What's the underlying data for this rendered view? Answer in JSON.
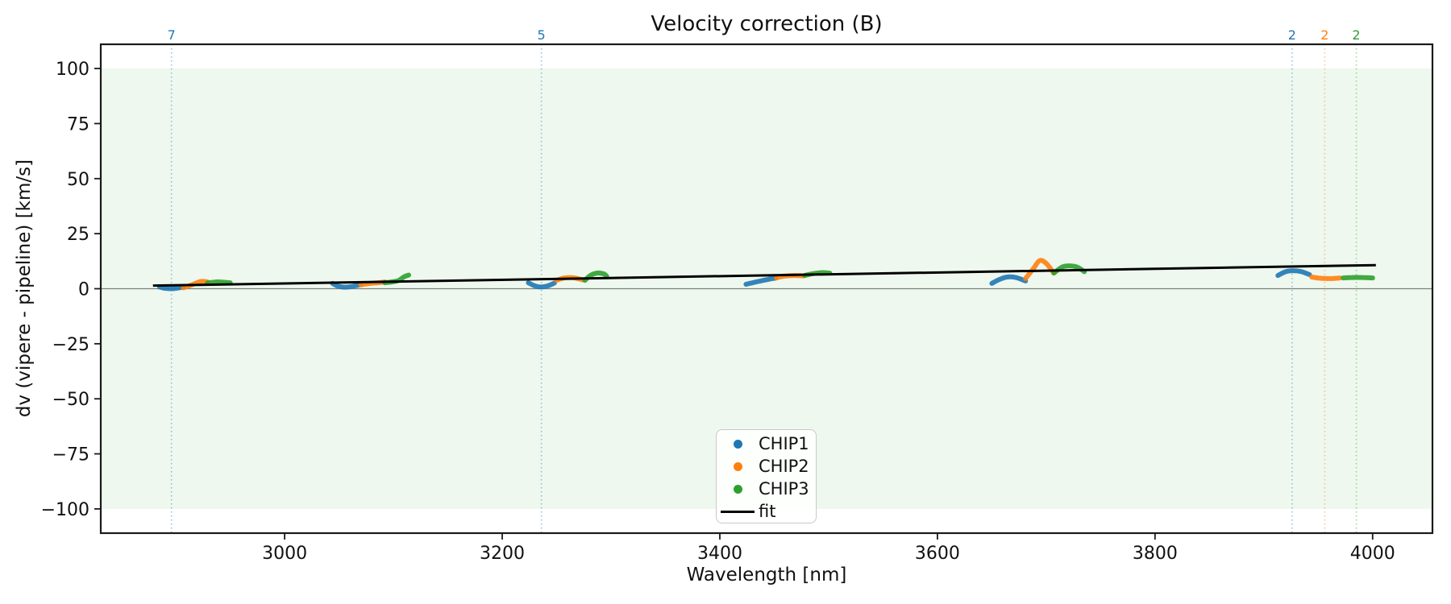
{
  "figure": {
    "title": "Velocity correction (B)",
    "xlabel": "Wavelength [nm]",
    "ylabel": "dv (vipere - pipeline) [km/s]"
  },
  "axes": {
    "xlim": [
      2831,
      4055
    ],
    "ylim": [
      -111,
      111
    ],
    "xticks": [
      3000,
      3200,
      3400,
      3600,
      3800,
      4000
    ],
    "yticks": [
      100,
      75,
      50,
      25,
      0,
      -25,
      -50,
      -75,
      -100
    ],
    "grid": false,
    "band": {
      "from": -100,
      "to": 100,
      "color": "#2ca02c",
      "opacity": 0.08
    },
    "zero_line_color": "#7f7f7f",
    "spine_color": "#1a1a1a",
    "tick_label_color": "#111111"
  },
  "top_markers": [
    {
      "label": "7",
      "x": 2896,
      "color": "#1f77b4"
    },
    {
      "label": "5",
      "x": 3236,
      "color": "#1f77b4"
    },
    {
      "label": "2",
      "x": 3926,
      "color": "#1f77b4"
    },
    {
      "label": "2",
      "x": 3956,
      "color": "#ff7f0e"
    },
    {
      "label": "2",
      "x": 3985,
      "color": "#2ca02c"
    }
  ],
  "chart_data": {
    "type": "scatter",
    "title": "Velocity correction (B)",
    "xlabel": "Wavelength [nm]",
    "ylabel": "dv (vipere - pipeline) [km/s]",
    "xlim": [
      2831,
      4055
    ],
    "ylim": [
      -111,
      111
    ],
    "legend_position": "lower center",
    "series": [
      {
        "name": "CHIP1",
        "color": "#1f77b4",
        "segments": [
          [
            [
              2885,
              0.8
            ],
            [
              2890,
              0.2
            ],
            [
              2897,
              0.0
            ],
            [
              2903,
              0.4
            ],
            [
              2907,
              0.8
            ]
          ],
          [
            [
              3044,
              2.4
            ],
            [
              3049,
              1.2
            ],
            [
              3056,
              0.7
            ],
            [
              3064,
              1.2
            ],
            [
              3070,
              1.9
            ]
          ],
          [
            [
              3224,
              2.7
            ],
            [
              3229,
              1.5
            ],
            [
              3235,
              0.8
            ],
            [
              3242,
              1.3
            ],
            [
              3248,
              2.6
            ]
          ],
          [
            [
              3424,
              2.0
            ],
            [
              3431,
              2.8
            ],
            [
              3439,
              3.7
            ],
            [
              3446,
              4.4
            ],
            [
              3451,
              4.8
            ]
          ],
          [
            [
              3650,
              2.4
            ],
            [
              3657,
              4.2
            ],
            [
              3664,
              5.3
            ],
            [
              3672,
              5.1
            ],
            [
              3681,
              3.5
            ]
          ],
          [
            [
              3913,
              6.0
            ],
            [
              3920,
              7.7
            ],
            [
              3927,
              8.2
            ],
            [
              3935,
              7.7
            ],
            [
              3942,
              6.4
            ]
          ]
        ]
      },
      {
        "name": "CHIP2",
        "color": "#ff7f0e",
        "segments": [
          [
            [
              2907,
              0.4
            ],
            [
              2916,
              2.0
            ],
            [
              2923,
              3.3
            ],
            [
              2929,
              3.1
            ]
          ],
          [
            [
              3070,
              1.8
            ],
            [
              3079,
              2.4
            ],
            [
              3086,
              2.7
            ],
            [
              3092,
              3.1
            ]
          ],
          [
            [
              3250,
              3.8
            ],
            [
              3256,
              4.8
            ],
            [
              3263,
              5.1
            ],
            [
              3268,
              4.8
            ],
            [
              3274,
              4.0
            ]
          ],
          [
            [
              3452,
              4.9
            ],
            [
              3459,
              5.7
            ],
            [
              3468,
              6.0
            ],
            [
              3477,
              5.8
            ]
          ],
          [
            [
              3681,
              4.6
            ],
            [
              3688,
              9.0
            ],
            [
              3694,
              12.8
            ],
            [
              3700,
              11.5
            ],
            [
              3707,
              7.1
            ]
          ],
          [
            [
              3944,
              5.3
            ],
            [
              3951,
              4.8
            ],
            [
              3961,
              4.6
            ],
            [
              3970,
              4.9
            ]
          ]
        ]
      },
      {
        "name": "CHIP3",
        "color": "#2ca02c",
        "segments": [
          [
            [
              2929,
              2.6
            ],
            [
              2938,
              3.1
            ],
            [
              2945,
              2.9
            ],
            [
              2950,
              2.7
            ]
          ],
          [
            [
              3092,
              2.7
            ],
            [
              3099,
              3.1
            ],
            [
              3105,
              3.8
            ],
            [
              3110,
              5.5
            ],
            [
              3114,
              6.2
            ]
          ],
          [
            [
              3276,
              3.8
            ],
            [
              3281,
              6.0
            ],
            [
              3287,
              7.1
            ],
            [
              3293,
              6.8
            ],
            [
              3296,
              5.7
            ]
          ],
          [
            [
              3478,
              6.0
            ],
            [
              3485,
              6.8
            ],
            [
              3494,
              7.3
            ],
            [
              3501,
              7.1
            ]
          ],
          [
            [
              3707,
              7.1
            ],
            [
              3715,
              9.9
            ],
            [
              3722,
              10.4
            ],
            [
              3729,
              9.7
            ],
            [
              3735,
              7.7
            ]
          ],
          [
            [
              3973,
              4.9
            ],
            [
              3981,
              5.1
            ],
            [
              3991,
              5.1
            ],
            [
              4000,
              4.9
            ]
          ]
        ]
      }
    ],
    "fit": {
      "name": "fit",
      "color": "#000000",
      "x": [
        2879,
        4003
      ],
      "y": [
        1.4,
        10.7
      ]
    }
  },
  "legend": {
    "items": [
      {
        "label": "CHIP1",
        "type": "dot",
        "color": "#1f77b4"
      },
      {
        "label": "CHIP2",
        "type": "dot",
        "color": "#ff7f0e"
      },
      {
        "label": "CHIP3",
        "type": "dot",
        "color": "#2ca02c"
      },
      {
        "label": "fit",
        "type": "line",
        "color": "#000000"
      }
    ]
  }
}
